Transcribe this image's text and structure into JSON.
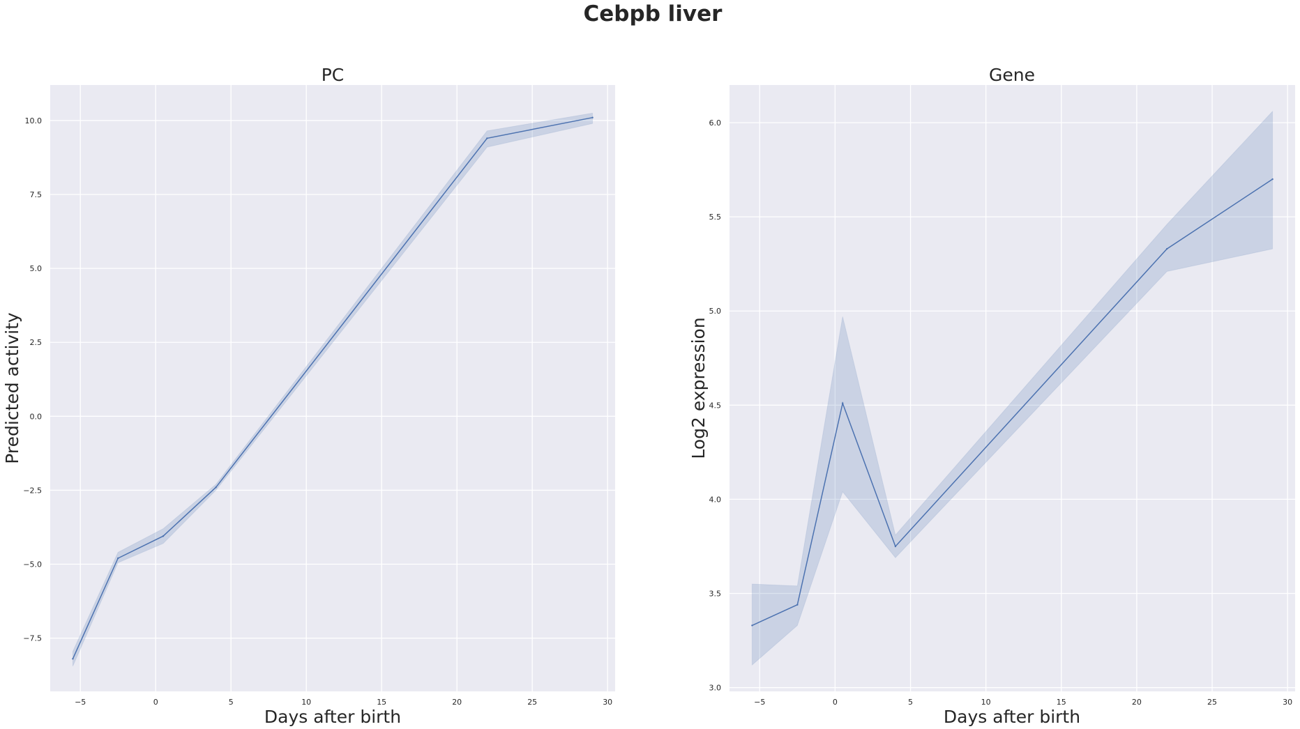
{
  "figure": {
    "title": "Cebpb liver"
  },
  "chart_data": [
    {
      "type": "line",
      "title": "PC",
      "xlabel": "Days after birth",
      "ylabel": "Predicted activity",
      "xlim": [
        -7,
        30.5
      ],
      "ylim": [
        -9.3,
        11.2
      ],
      "xticks": [
        -5,
        0,
        5,
        10,
        15,
        20,
        25,
        30
      ],
      "yticks": [
        -7.5,
        -5.0,
        -2.5,
        0.0,
        2.5,
        5.0,
        7.5,
        10.0
      ],
      "xtick_labels": [
        "−5",
        "0",
        "5",
        "10",
        "15",
        "20",
        "25",
        "30"
      ],
      "ytick_labels": [
        "−7.5",
        "−5.0",
        "−2.5",
        "0.0",
        "2.5",
        "5.0",
        "7.5",
        "10.0"
      ],
      "grid": true,
      "color": "#4c72b0",
      "x": [
        -5.5,
        -2.5,
        0.5,
        4,
        22,
        29
      ],
      "y": [
        -8.2,
        -4.8,
        -4.05,
        -2.4,
        9.4,
        10.1
      ],
      "ci_lower": [
        -8.45,
        -4.95,
        -4.3,
        -2.5,
        9.1,
        9.9
      ],
      "ci_upper": [
        -7.95,
        -4.6,
        -3.8,
        -2.3,
        9.65,
        10.25
      ]
    },
    {
      "type": "line",
      "title": "Gene",
      "xlabel": "Days after birth",
      "ylabel": "Log2 expression",
      "xlim": [
        -7,
        30.5
      ],
      "ylim": [
        2.98,
        6.2
      ],
      "xticks": [
        -5,
        0,
        5,
        10,
        15,
        20,
        25,
        30
      ],
      "yticks": [
        3.0,
        3.5,
        4.0,
        4.5,
        5.0,
        5.5,
        6.0
      ],
      "xtick_labels": [
        "−5",
        "0",
        "5",
        "10",
        "15",
        "20",
        "25",
        "30"
      ],
      "ytick_labels": [
        "3.0",
        "3.5",
        "4.0",
        "4.5",
        "5.0",
        "5.5",
        "6.0"
      ],
      "grid": true,
      "color": "#4c72b0",
      "x": [
        -5.5,
        -2.5,
        0.5,
        4,
        22,
        29
      ],
      "y": [
        3.33,
        3.44,
        4.51,
        3.75,
        5.33,
        5.7
      ],
      "ci_lower": [
        3.12,
        3.33,
        4.04,
        3.69,
        5.21,
        5.33
      ],
      "ci_upper": [
        3.55,
        3.54,
        4.97,
        3.81,
        5.46,
        6.06
      ]
    }
  ]
}
